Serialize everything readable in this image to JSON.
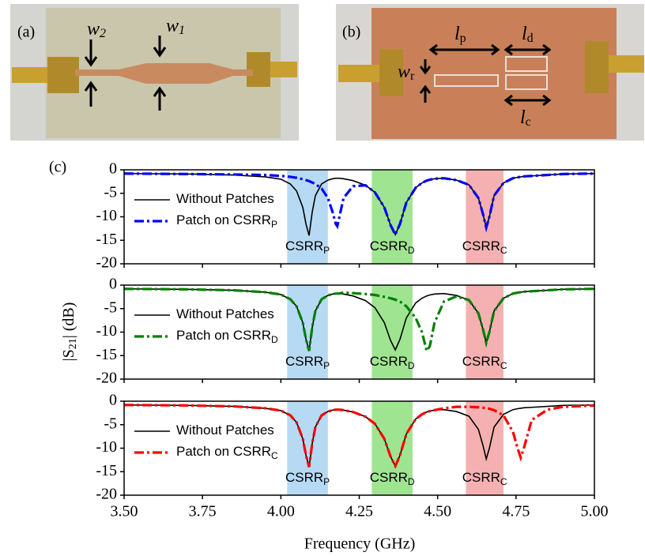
{
  "photos": {
    "a": {
      "label": "(a)",
      "annotations": [
        {
          "main": "w",
          "sub": "2"
        },
        {
          "main": "w",
          "sub": "1"
        }
      ]
    },
    "b": {
      "label": "(b)",
      "annotations": [
        {
          "main": "l",
          "sub": "p"
        },
        {
          "main": "l",
          "sub": "d"
        },
        {
          "main": "w",
          "sub": "r"
        },
        {
          "main": "l",
          "sub": "c"
        }
      ]
    }
  },
  "panel_label": "(c)",
  "ylabel": {
    "main": "|S",
    "sub": "21",
    "rest": "| (dB)"
  },
  "xlabel": "Frequency (GHz)",
  "chart_data": [
    {
      "type": "line",
      "xlim": [
        3.5,
        5.0
      ],
      "ylim": [
        -20,
        0
      ],
      "xticks": [
        3.5,
        3.75,
        4,
        4.25,
        4.5,
        4.75,
        5
      ],
      "yticks": [
        0,
        -5,
        -10,
        -15,
        -20
      ],
      "bands": [
        {
          "xmin": 4.02,
          "xmax": 4.15,
          "color": "#a9d4f2",
          "label": "CSRR",
          "sub": "P"
        },
        {
          "xmin": 4.29,
          "xmax": 4.42,
          "color": "#8ee07e",
          "label": "CSRR",
          "sub": "D"
        },
        {
          "xmin": 4.59,
          "xmax": 4.71,
          "color": "#f3a3a3",
          "label": "CSRR",
          "sub": "C"
        }
      ],
      "x": [
        3.5,
        3.7,
        3.85,
        3.95,
        4.0,
        4.03,
        4.05,
        4.07,
        4.08,
        4.09,
        4.1,
        4.11,
        4.13,
        4.15,
        4.165,
        4.175,
        4.18,
        4.185,
        4.2,
        4.23,
        4.27,
        4.3,
        4.33,
        4.35,
        4.365,
        4.38,
        4.4,
        4.43,
        4.45,
        4.465,
        4.475,
        4.49,
        4.52,
        4.56,
        4.6,
        4.63,
        4.645,
        4.655,
        4.665,
        4.68,
        4.71,
        4.74,
        4.755,
        4.765,
        4.775,
        4.8,
        4.85,
        4.9,
        5.0
      ],
      "series": [
        {
          "name": "Without Patches",
          "color": "#000000",
          "linestyle": "solid",
          "values": [
            -0.8,
            -0.9,
            -1.1,
            -1.5,
            -2,
            -3,
            -4.5,
            -8,
            -11.5,
            -14,
            -9,
            -5.5,
            -3,
            -2.2,
            -1.9,
            -1.8,
            -1.8,
            -1.8,
            -1.9,
            -2.3,
            -3.3,
            -4.8,
            -8,
            -11.8,
            -13.8,
            -11.5,
            -7,
            -3.8,
            -2.8,
            -2.3,
            -2.1,
            -1.9,
            -1.8,
            -2.2,
            -3.2,
            -6,
            -9.5,
            -12.3,
            -10,
            -5.5,
            -2.8,
            -1.8,
            -1.6,
            -1.5,
            -1.4,
            -1.3,
            -1.1,
            -0.9,
            -0.8
          ]
        },
        {
          "name": "Patch on CSRR",
          "name_sub": "P",
          "color": "#0000ff",
          "linestyle": "dashdot",
          "values": [
            -0.8,
            -0.9,
            -1,
            -1.1,
            -1.3,
            -1.5,
            -1.7,
            -2,
            -2.2,
            -2.4,
            -2.7,
            -3,
            -4,
            -6,
            -9,
            -11.5,
            -12,
            -10.5,
            -6,
            -3.5,
            -3.3,
            -4.8,
            -8,
            -11.8,
            -13.8,
            -11.5,
            -7,
            -3.8,
            -2.8,
            -2.3,
            -2.1,
            -1.9,
            -1.8,
            -2.2,
            -3.2,
            -6,
            -9.5,
            -12.3,
            -10,
            -5.5,
            -2.8,
            -1.8,
            -1.6,
            -1.5,
            -1.4,
            -1.3,
            -1.1,
            -0.9,
            -0.8
          ]
        }
      ]
    },
    {
      "type": "line",
      "xlim": [
        3.5,
        5.0
      ],
      "ylim": [
        -20,
        0
      ],
      "xticks": [
        3.5,
        3.75,
        4,
        4.25,
        4.5,
        4.75,
        5
      ],
      "yticks": [
        0,
        -5,
        -10,
        -15,
        -20
      ],
      "bands": [
        {
          "xmin": 4.02,
          "xmax": 4.15,
          "color": "#a9d4f2",
          "label": "CSRR",
          "sub": "P"
        },
        {
          "xmin": 4.29,
          "xmax": 4.42,
          "color": "#8ee07e",
          "label": "CSRR",
          "sub": "D"
        },
        {
          "xmin": 4.59,
          "xmax": 4.71,
          "color": "#f3a3a3",
          "label": "CSRR",
          "sub": "C"
        }
      ],
      "x": [
        3.5,
        3.7,
        3.85,
        3.95,
        4.0,
        4.03,
        4.05,
        4.07,
        4.08,
        4.09,
        4.1,
        4.11,
        4.13,
        4.15,
        4.165,
        4.175,
        4.18,
        4.185,
        4.2,
        4.23,
        4.27,
        4.3,
        4.33,
        4.35,
        4.365,
        4.38,
        4.4,
        4.43,
        4.45,
        4.465,
        4.475,
        4.49,
        4.52,
        4.56,
        4.6,
        4.63,
        4.645,
        4.655,
        4.665,
        4.68,
        4.71,
        4.74,
        4.755,
        4.765,
        4.775,
        4.8,
        4.85,
        4.9,
        5.0
      ],
      "series": [
        {
          "name": "Without Patches",
          "color": "#000000",
          "linestyle": "solid",
          "values": [
            -0.8,
            -0.9,
            -1.1,
            -1.5,
            -2,
            -3,
            -4.5,
            -8,
            -11.5,
            -14,
            -9,
            -5.5,
            -3,
            -2.2,
            -1.9,
            -1.8,
            -1.8,
            -1.8,
            -1.9,
            -2.3,
            -3.3,
            -4.8,
            -8,
            -11.8,
            -13.8,
            -11.5,
            -7,
            -3.8,
            -2.8,
            -2.3,
            -2.1,
            -1.9,
            -1.8,
            -2.2,
            -3.2,
            -6,
            -9.5,
            -12.3,
            -10,
            -5.5,
            -2.8,
            -1.8,
            -1.6,
            -1.5,
            -1.4,
            -1.3,
            -1.1,
            -0.9,
            -0.8
          ]
        },
        {
          "name": "Patch on CSRR",
          "name_sub": "D",
          "color": "#008000",
          "linestyle": "dashdot",
          "values": [
            -0.8,
            -0.9,
            -1.1,
            -1.5,
            -2,
            -3,
            -4.5,
            -8,
            -11.5,
            -14,
            -9,
            -5.5,
            -3,
            -2.2,
            -1.9,
            -1.8,
            -1.8,
            -1.8,
            -1.6,
            -1.7,
            -1.9,
            -2.1,
            -2.5,
            -2.8,
            -3.1,
            -3.5,
            -4.5,
            -7,
            -10,
            -14,
            -13,
            -8,
            -3.5,
            -2.4,
            -3.2,
            -6,
            -9.5,
            -12.3,
            -10,
            -5.5,
            -2.8,
            -1.8,
            -1.6,
            -1.5,
            -1.4,
            -1.3,
            -1.1,
            -0.9,
            -0.8
          ]
        }
      ]
    },
    {
      "type": "line",
      "xlim": [
        3.5,
        5.0
      ],
      "ylim": [
        -20,
        0
      ],
      "xticks": [
        {
          "value": 3.5,
          "label": "3.50"
        },
        {
          "value": 3.75,
          "label": "3.75"
        },
        {
          "value": 4,
          "label": "4.00"
        },
        {
          "value": 4.25,
          "label": "4.25"
        },
        {
          "value": 4.5,
          "label": "4.50"
        },
        {
          "value": 4.75,
          "label": "4.75"
        },
        {
          "value": 5,
          "label": "5.00"
        }
      ],
      "yticks": [
        0,
        -5,
        -10,
        -15,
        -20
      ],
      "bands": [
        {
          "xmin": 4.02,
          "xmax": 4.15,
          "color": "#a9d4f2",
          "label": "CSRR",
          "sub": "P"
        },
        {
          "xmin": 4.29,
          "xmax": 4.42,
          "color": "#8ee07e",
          "label": "CSRR",
          "sub": "D"
        },
        {
          "xmin": 4.59,
          "xmax": 4.71,
          "color": "#f3a3a3",
          "label": "CSRR",
          "sub": "C"
        }
      ],
      "x": [
        3.5,
        3.7,
        3.85,
        3.95,
        4.0,
        4.03,
        4.05,
        4.07,
        4.08,
        4.09,
        4.1,
        4.11,
        4.13,
        4.15,
        4.165,
        4.175,
        4.18,
        4.185,
        4.2,
        4.23,
        4.27,
        4.3,
        4.33,
        4.35,
        4.365,
        4.38,
        4.4,
        4.43,
        4.45,
        4.465,
        4.475,
        4.49,
        4.52,
        4.56,
        4.6,
        4.63,
        4.645,
        4.655,
        4.665,
        4.68,
        4.71,
        4.74,
        4.755,
        4.765,
        4.775,
        4.8,
        4.85,
        4.9,
        5.0
      ],
      "series": [
        {
          "name": "Without Patches",
          "color": "#000000",
          "linestyle": "solid",
          "values": [
            -0.8,
            -0.9,
            -1.1,
            -1.5,
            -2,
            -3,
            -4.5,
            -8,
            -11.5,
            -14,
            -9,
            -5.5,
            -3,
            -2.2,
            -1.9,
            -1.8,
            -1.8,
            -1.8,
            -1.9,
            -2.3,
            -3.3,
            -4.8,
            -8,
            -11.8,
            -13.8,
            -11.5,
            -7,
            -3.8,
            -2.8,
            -2.3,
            -2.1,
            -1.9,
            -1.8,
            -2.2,
            -3.2,
            -6,
            -9.5,
            -12.3,
            -10,
            -5.5,
            -2.8,
            -1.8,
            -1.6,
            -1.5,
            -1.4,
            -1.3,
            -1.1,
            -0.9,
            -0.8
          ]
        },
        {
          "name": "Patch on CSRR",
          "name_sub": "C",
          "color": "#ff0000",
          "linestyle": "dashdot",
          "values": [
            -0.8,
            -0.9,
            -1.1,
            -1.5,
            -2,
            -3,
            -4.5,
            -8,
            -11.5,
            -14,
            -9,
            -5.5,
            -3,
            -2.2,
            -1.9,
            -1.8,
            -1.8,
            -1.8,
            -1.9,
            -2.3,
            -3.3,
            -4.8,
            -8,
            -11.8,
            -13.8,
            -11.5,
            -7,
            -3.8,
            -2.8,
            -2.3,
            -2.1,
            -1.9,
            -1.5,
            -1.2,
            -1.2,
            -1.3,
            -1.4,
            -1.5,
            -1.6,
            -1.9,
            -3,
            -6.5,
            -10,
            -12,
            -10,
            -4,
            -1.8,
            -1.2,
            -0.9
          ]
        }
      ]
    }
  ]
}
